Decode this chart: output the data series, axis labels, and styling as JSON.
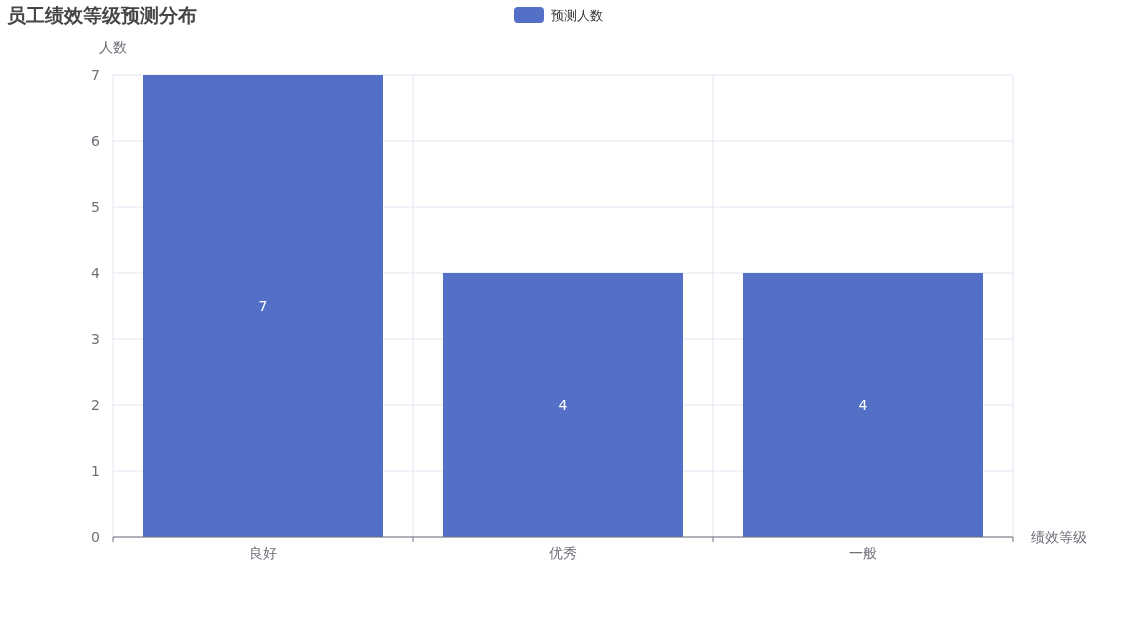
{
  "chart_data": {
    "type": "bar",
    "title": "员工绩效等级预测分布",
    "xlabel": "绩效等级",
    "ylabel": "人数",
    "categories": [
      "良好",
      "优秀",
      "一般"
    ],
    "series": [
      {
        "name": "预测人数",
        "color": "#5470c6",
        "values": [
          7,
          4,
          4
        ]
      }
    ],
    "ylim": [
      0,
      7
    ],
    "yticks": [
      0,
      1,
      2,
      3,
      4,
      5,
      6,
      7
    ],
    "grid": true,
    "legend": "top",
    "data_labels": true
  }
}
